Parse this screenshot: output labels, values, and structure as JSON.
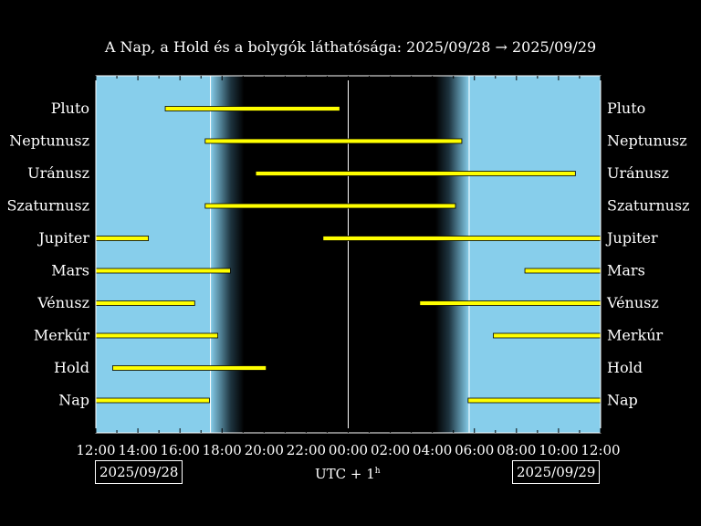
{
  "title": "A Nap, a Hold és a bolygók láthatósága: 2025/09/28 → 2025/09/29",
  "date_left": "2025/09/28",
  "date_right": "2025/09/29",
  "timezone": {
    "main": "UTC + 1",
    "sup": "h"
  },
  "colors": {
    "background": "#000000",
    "day_sky": "#87ceeb",
    "bar": "#ffff00",
    "bar_edge": "#000000",
    "axis": "#ffffff"
  },
  "chart_data": {
    "type": "bar",
    "orientation": "horizontal",
    "title": "A Nap, a Hold és a bolygók láthatósága: 2025/09/28 → 2025/09/29",
    "xlabel": "UTC + 1h",
    "xlim": [
      12,
      36
    ],
    "x_ticks": [
      "12:00",
      "14:00",
      "16:00",
      "18:00",
      "20:00",
      "22:00",
      "00:00",
      "02:00",
      "04:00",
      "06:00",
      "08:00",
      "10:00",
      "12:00"
    ],
    "categories": [
      "Pluto",
      "Neptunusz",
      "Uránusz",
      "Szaturnusz",
      "Jupiter",
      "Mars",
      "Vénusz",
      "Merkúr",
      "Hold",
      "Nap"
    ],
    "intervals": [
      [
        [
          15.3,
          23.6
        ]
      ],
      [
        [
          17.2,
          29.4
        ]
      ],
      [
        [
          19.6,
          34.8
        ]
      ],
      [
        [
          17.2,
          29.1
        ]
      ],
      [
        [
          12.0,
          14.5
        ],
        [
          22.8,
          36.0
        ]
      ],
      [
        [
          12.0,
          18.4
        ],
        [
          32.4,
          36.0
        ]
      ],
      [
        [
          12.0,
          16.7
        ],
        [
          27.4,
          36.0
        ]
      ],
      [
        [
          12.0,
          17.8
        ],
        [
          30.9,
          36.0
        ]
      ],
      [
        [
          12.8,
          20.1
        ]
      ],
      [
        [
          12.0,
          17.4
        ],
        [
          29.7,
          36.0
        ]
      ]
    ],
    "sunset": 17.45,
    "sunrise": 29.75,
    "twilight_hours": 1.6,
    "midnight": 24,
    "grid": false
  }
}
